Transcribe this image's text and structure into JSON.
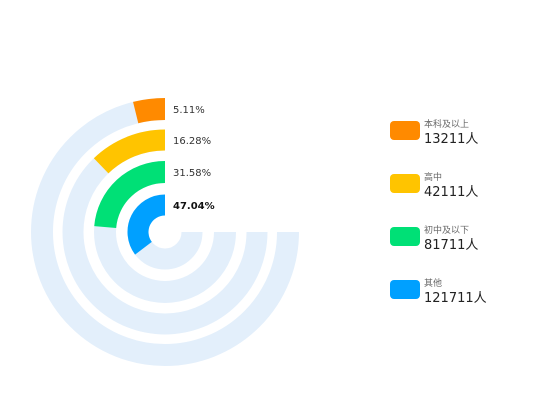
{
  "chart_data": {
    "type": "pie",
    "variant": "concentric-radial-bar",
    "track_color": "#e3effb",
    "categories": [
      "本科及以上",
      "高中",
      "初中及以下",
      "其他"
    ],
    "series": [
      {
        "name": "本科及以上",
        "count_label": "13211人",
        "value": 5.11,
        "percent_label": "5.11%",
        "color": "#ff8a00"
      },
      {
        "name": "高中",
        "count_label": "42111人",
        "value": 16.28,
        "percent_label": "16.28%",
        "color": "#ffc400"
      },
      {
        "name": "初中及以下",
        "count_label": "81711人",
        "value": 31.58,
        "percent_label": "31.58%",
        "color": "#00e076"
      },
      {
        "name": "其他",
        "count_label": "121711人",
        "value": 47.04,
        "percent_label": "47.04%",
        "color": "#00a0ff"
      }
    ],
    "legend_position": "right"
  }
}
